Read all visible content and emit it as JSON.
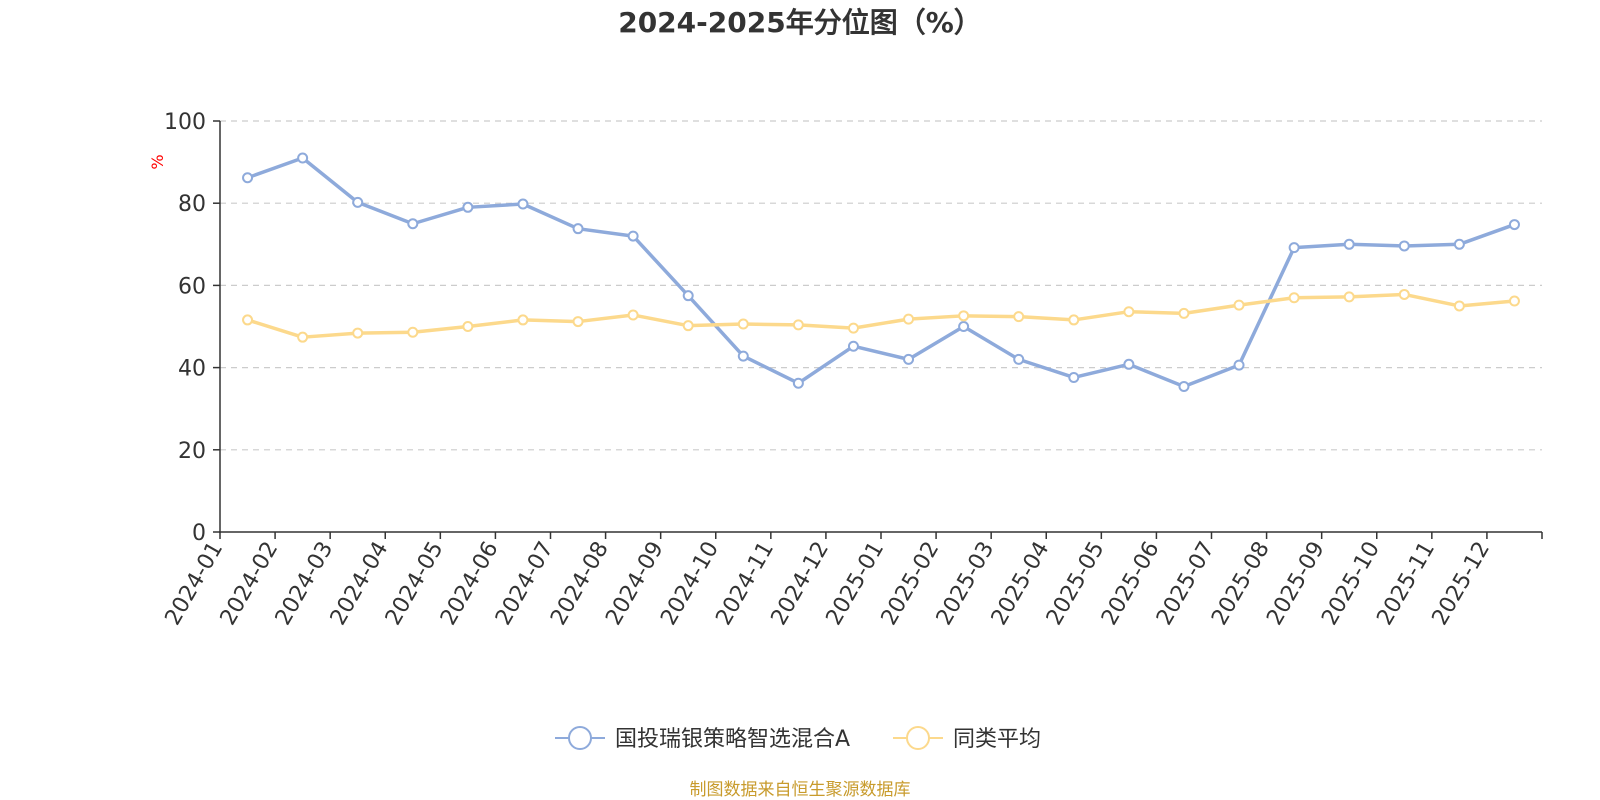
{
  "chart_data": {
    "type": "line",
    "title": "2024-2025年分位图（%）",
    "ylabel": "%",
    "ylim": [
      0,
      100
    ],
    "yticks": [
      0,
      20,
      40,
      60,
      80,
      100
    ],
    "categories": [
      "2024-01",
      "2024-02",
      "2024-03",
      "2024-04",
      "2024-05",
      "2024-06",
      "2024-07",
      "2024-08",
      "2024-09",
      "2024-10",
      "2024-11",
      "2024-12",
      "2025-01",
      "2025-02",
      "2025-03",
      "2025-04",
      "2025-05",
      "2025-06",
      "2025-07",
      "2025-08",
      "2025-09",
      "2025-10",
      "2025-11",
      "2025-12"
    ],
    "series": [
      {
        "name": "国投瑞银策略智选混合A",
        "color": "#8eaadb",
        "values": [
          86.2,
          91.0,
          80.2,
          75.0,
          79.0,
          79.8,
          73.8,
          72.0,
          57.5,
          42.8,
          36.2,
          45.2,
          42.0,
          50.0,
          42.0,
          37.6,
          40.8,
          35.4,
          40.6,
          69.2,
          70.0,
          69.6,
          70.0,
          74.8
        ]
      },
      {
        "name": "同类平均",
        "color": "#fcd98c",
        "values": [
          51.6,
          47.4,
          48.4,
          48.6,
          50.0,
          51.6,
          51.2,
          52.8,
          50.2,
          50.6,
          50.4,
          49.6,
          51.8,
          52.6,
          52.4,
          51.6,
          53.6,
          53.2,
          55.2,
          57.0,
          57.2,
          57.8,
          55.0,
          56.2
        ]
      }
    ],
    "grid": true,
    "legend_position": "bottom-center"
  },
  "source_text": "制图数据来自恒生聚源数据库",
  "colors": {
    "axis": "#333333",
    "grid": "#cccccc",
    "unit": "#ff0000",
    "source": "#c89b2c"
  }
}
